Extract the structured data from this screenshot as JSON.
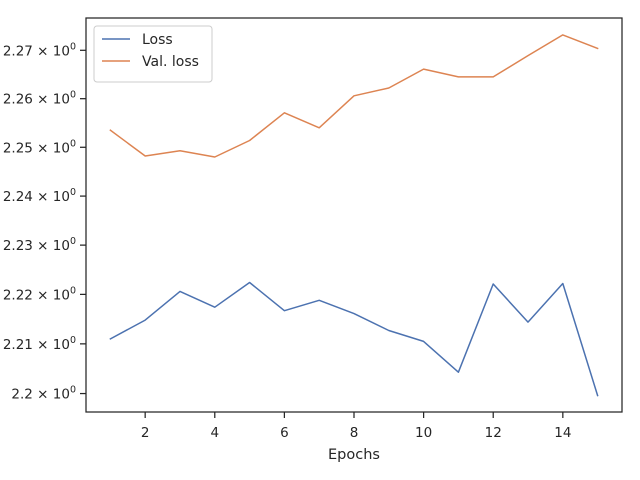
{
  "chart_data": {
    "type": "line",
    "title": "",
    "xlabel": "Epochs",
    "ylabel": "",
    "yscale": "log",
    "grid": false,
    "legend_position": "top-left",
    "x": [
      1,
      2,
      3,
      4,
      5,
      6,
      7,
      8,
      9,
      10,
      11,
      12,
      13,
      14,
      15
    ],
    "xlim": [
      0.3,
      15.7
    ],
    "ylim": [
      2.1963,
      2.2767
    ],
    "xticks": [
      2,
      4,
      6,
      8,
      10,
      12,
      14
    ],
    "xtick_labels": [
      "2",
      "4",
      "6",
      "8",
      "10",
      "12",
      "14"
    ],
    "yticks": [
      2.2,
      2.21,
      2.22,
      2.23,
      2.24,
      2.25,
      2.26,
      2.27
    ],
    "ytick_mantissas": [
      "2.2",
      "2.21",
      "2.22",
      "2.23",
      "2.24",
      "2.25",
      "2.26",
      "2.27"
    ],
    "ytick_times": "×",
    "ytick_base": "10",
    "ytick_exponent": "0",
    "series": [
      {
        "name": "Loss",
        "color": "#4c72b0",
        "values": [
          2.211,
          2.2148,
          2.2206,
          2.2174,
          2.2224,
          2.2167,
          2.2188,
          2.2161,
          2.2127,
          2.2105,
          2.2043,
          2.2221,
          2.2144,
          2.2222,
          2.1996
        ]
      },
      {
        "name": "Val. loss",
        "color": "#dd8452",
        "values": [
          2.2535,
          2.2482,
          2.2493,
          2.248,
          2.2514,
          2.2571,
          2.254,
          2.2606,
          2.2622,
          2.2661,
          2.2645,
          2.2645,
          2.2689,
          2.2732,
          2.2704
        ]
      }
    ]
  }
}
